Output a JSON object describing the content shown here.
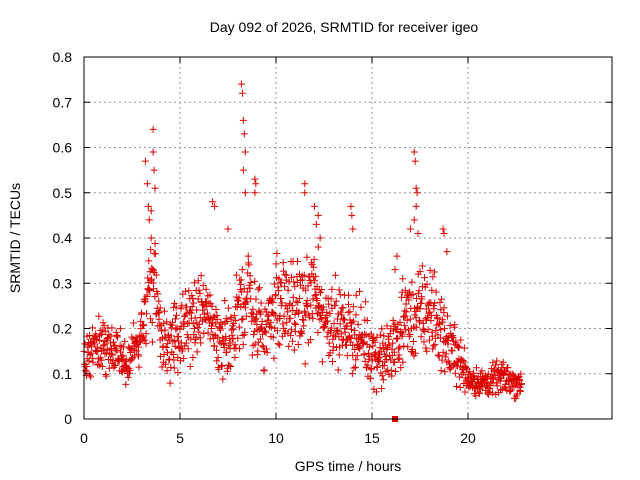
{
  "chart_data": {
    "type": "scatter",
    "title": "Day 092 of 2026, SRMTID for receiver igeo",
    "xlabel": "GPS time / hours",
    "ylabel": "SRMTID / TECUs",
    "xlim": [
      0,
      27.5
    ],
    "ylim": [
      0,
      0.8
    ],
    "xticks": [
      0,
      5,
      10,
      15,
      20
    ],
    "xtick_labels": [
      "0",
      "5",
      "10",
      "15",
      "20"
    ],
    "yticks": [
      0,
      0.1,
      0.2,
      0.3,
      0.4,
      0.5,
      0.6,
      0.7,
      0.8
    ],
    "ytick_labels": [
      "0",
      "0.1",
      "0.2",
      "0.3",
      "0.4",
      "0.5",
      "0.6",
      "0.7",
      "0.8"
    ],
    "grid": true,
    "marker": "+",
    "colors": {
      "series": "#dd0000",
      "grid": "#999999",
      "axis": "#000000"
    },
    "series": [
      {
        "name": "SRMTID",
        "profile": {
          "x": [
            0,
            0.5,
            1,
            1.5,
            2,
            2.5,
            3,
            3.3,
            3.6,
            4,
            4.5,
            5,
            5.5,
            6,
            6.5,
            7,
            7.5,
            8,
            8.3,
            8.6,
            9,
            9.5,
            10,
            10.5,
            11,
            11.5,
            12,
            12.5,
            13,
            13.5,
            14,
            14.5,
            15,
            15.5,
            16,
            16.5,
            17,
            17.5,
            18,
            18.5,
            19,
            19.5,
            20,
            20.5,
            21,
            21.5,
            22,
            22.5,
            22.8
          ],
          "center": [
            0.14,
            0.15,
            0.17,
            0.15,
            0.13,
            0.14,
            0.2,
            0.28,
            0.3,
            0.18,
            0.17,
            0.18,
            0.22,
            0.24,
            0.22,
            0.17,
            0.18,
            0.22,
            0.27,
            0.28,
            0.2,
            0.2,
            0.26,
            0.25,
            0.24,
            0.25,
            0.28,
            0.22,
            0.22,
            0.2,
            0.2,
            0.17,
            0.15,
            0.13,
            0.15,
            0.2,
            0.22,
            0.23,
            0.24,
            0.2,
            0.16,
            0.14,
            0.09,
            0.08,
            0.08,
            0.09,
            0.09,
            0.08,
            0.08
          ],
          "spread": [
            0.05,
            0.05,
            0.06,
            0.05,
            0.05,
            0.05,
            0.07,
            0.1,
            0.1,
            0.07,
            0.07,
            0.07,
            0.08,
            0.08,
            0.08,
            0.07,
            0.07,
            0.09,
            0.1,
            0.1,
            0.08,
            0.08,
            0.1,
            0.09,
            0.09,
            0.09,
            0.1,
            0.08,
            0.08,
            0.07,
            0.08,
            0.07,
            0.06,
            0.06,
            0.07,
            0.08,
            0.09,
            0.09,
            0.1,
            0.08,
            0.06,
            0.06,
            0.03,
            0.03,
            0.03,
            0.03,
            0.03,
            0.03,
            0.03
          ]
        },
        "spikes": [
          [
            3.2,
            0.57
          ],
          [
            3.3,
            0.52
          ],
          [
            3.35,
            0.47
          ],
          [
            3.5,
            0.46
          ],
          [
            3.6,
            0.64
          ],
          [
            3.6,
            0.59
          ],
          [
            3.65,
            0.55
          ],
          [
            3.7,
            0.51
          ],
          [
            3.4,
            0.44
          ],
          [
            3.5,
            0.4
          ],
          [
            6.7,
            0.48
          ],
          [
            6.8,
            0.47
          ],
          [
            7.5,
            0.42
          ],
          [
            8.2,
            0.74
          ],
          [
            8.25,
            0.72
          ],
          [
            8.3,
            0.66
          ],
          [
            8.35,
            0.63
          ],
          [
            8.4,
            0.59
          ],
          [
            8.3,
            0.55
          ],
          [
            8.4,
            0.5
          ],
          [
            8.9,
            0.53
          ],
          [
            8.95,
            0.52
          ],
          [
            8.9,
            0.5
          ],
          [
            11.5,
            0.52
          ],
          [
            11.5,
            0.5
          ],
          [
            12.0,
            0.47
          ],
          [
            12.2,
            0.45
          ],
          [
            12.1,
            0.43
          ],
          [
            12.3,
            0.4
          ],
          [
            12.2,
            0.38
          ],
          [
            13.9,
            0.47
          ],
          [
            13.95,
            0.45
          ],
          [
            14.0,
            0.42
          ],
          [
            16.3,
            0.36
          ],
          [
            16.2,
            0.33
          ],
          [
            16.6,
            0.31
          ],
          [
            17.0,
            0.42
          ],
          [
            17.2,
            0.59
          ],
          [
            17.25,
            0.57
          ],
          [
            17.3,
            0.51
          ],
          [
            17.35,
            0.5
          ],
          [
            17.3,
            0.47
          ],
          [
            17.2,
            0.44
          ],
          [
            17.4,
            0.41
          ],
          [
            18.7,
            0.42
          ],
          [
            18.75,
            0.41
          ],
          [
            18.9,
            0.37
          ]
        ],
        "markers_special": [
          {
            "x": 16.2,
            "y": 0.0,
            "shape": "square"
          }
        ]
      }
    ]
  }
}
